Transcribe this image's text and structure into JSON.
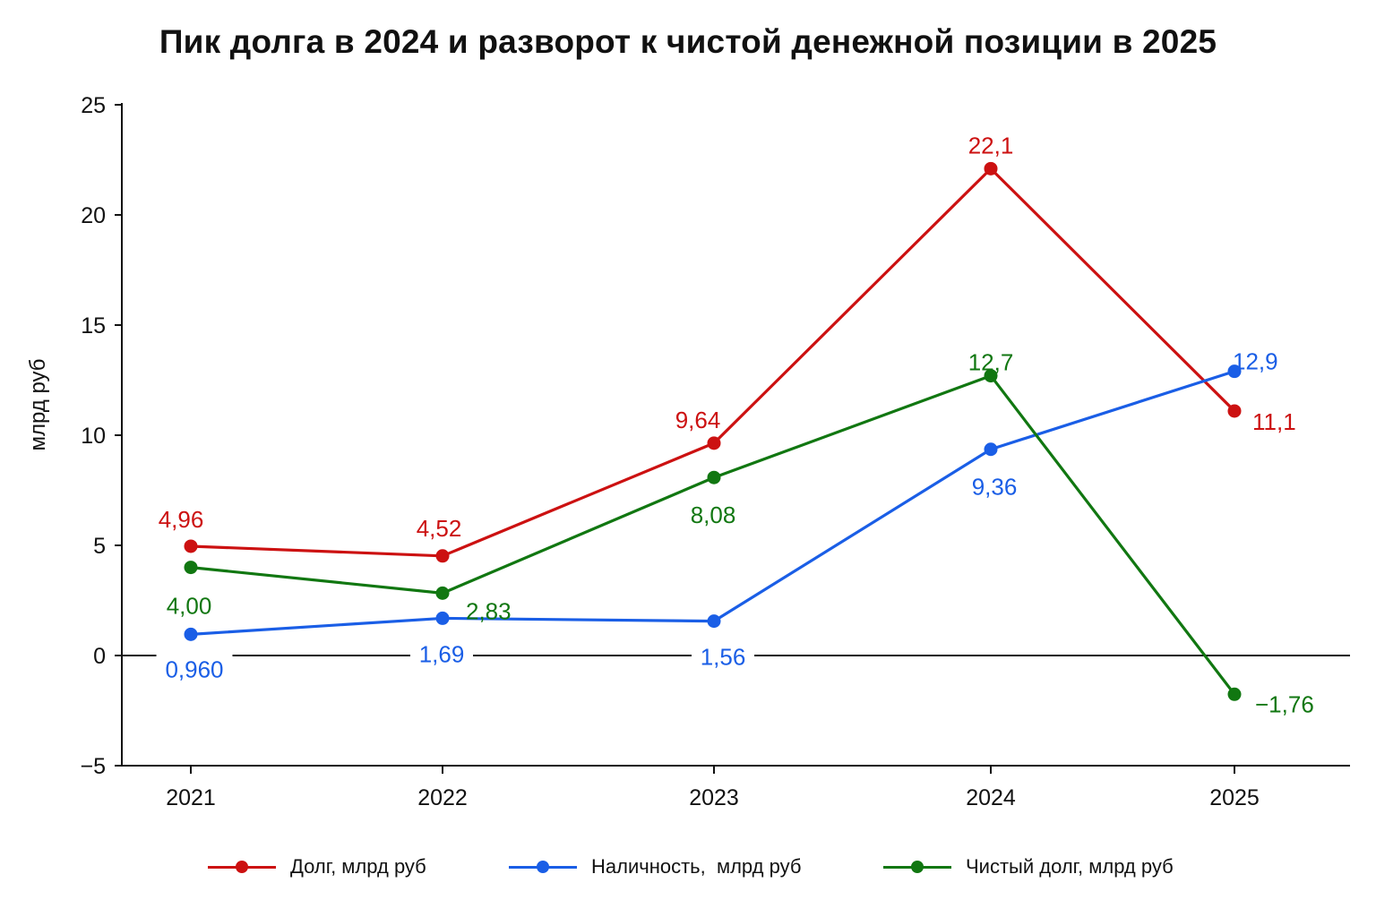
{
  "chart_data": {
    "type": "line",
    "title": "Пик долга в 2024 и разворот к чистой денежной позиции в 2025",
    "xlabel": "",
    "ylabel": "млрд руб",
    "categories": [
      "2021",
      "2022",
      "2023",
      "2024",
      "2025"
    ],
    "ylim": [
      -5,
      25
    ],
    "yticks": [
      {
        "value": -5,
        "label": "−5"
      },
      {
        "value": 0,
        "label": "0"
      },
      {
        "value": 5,
        "label": "5"
      },
      {
        "value": 10,
        "label": "10"
      },
      {
        "value": 15,
        "label": "15"
      },
      {
        "value": 20,
        "label": "20"
      },
      {
        "value": 25,
        "label": "25"
      }
    ],
    "grid": false,
    "zero_line": true,
    "legend_position": "bottom",
    "series": [
      {
        "name": "Долг, млрд руб",
        "color": "#cc1111",
        "values": [
          4.96,
          4.52,
          9.64,
          22.1,
          11.1
        ],
        "labels": [
          "4,96",
          "4,52",
          "9,64",
          "22,1",
          "11,1"
        ]
      },
      {
        "name": "Наличность,  млрд руб",
        "color": "#1a5ee6",
        "values": [
          0.96,
          1.69,
          1.56,
          9.36,
          12.9
        ],
        "labels": [
          "0,960",
          "1,69",
          "1,56",
          "9,36",
          "12,9"
        ]
      },
      {
        "name": "Чистый долг, млрд руб",
        "color": "#117711",
        "values": [
          4.0,
          2.83,
          8.08,
          12.7,
          -1.76
        ],
        "labels": [
          "4,00",
          "2,83",
          "8,08",
          "12,7",
          "−1,76"
        ]
      }
    ]
  }
}
